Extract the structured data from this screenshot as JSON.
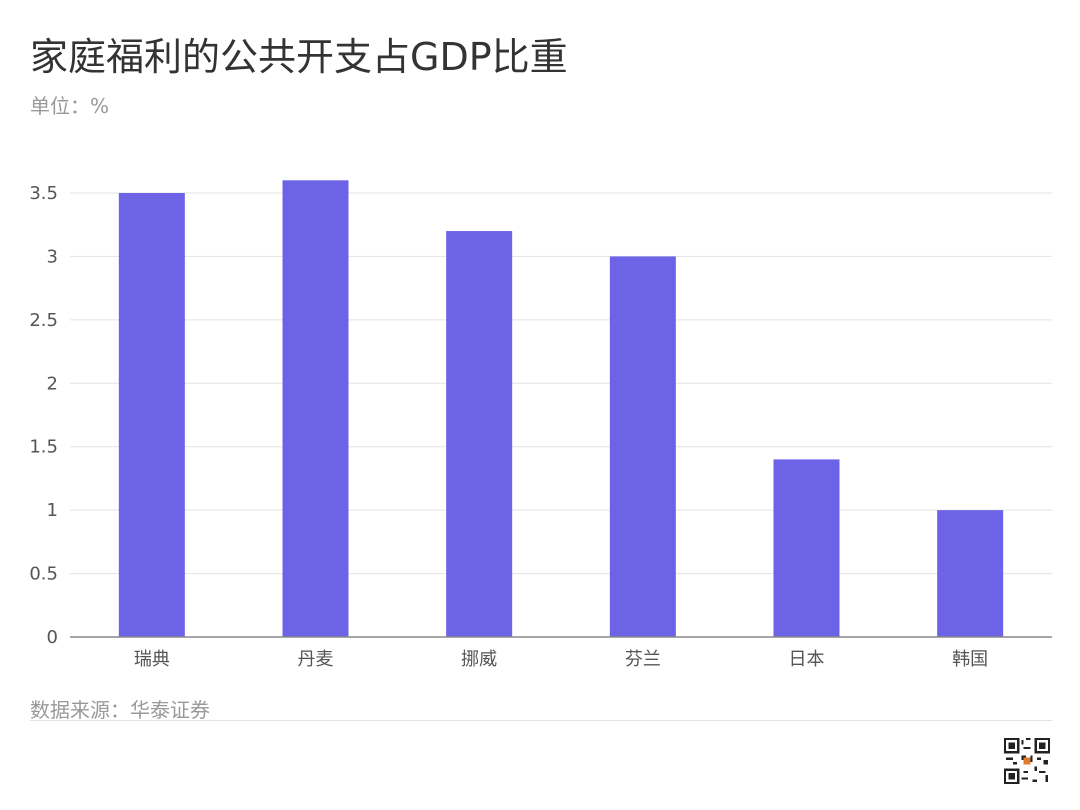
{
  "header": {
    "title": "家庭福利的公共开支占GDP比重",
    "unit": "单位：%"
  },
  "footer": {
    "source": "数据来源：华泰证券"
  },
  "colors": {
    "bar": "#6c63e6",
    "grid": "#e3e3e3",
    "axis": "#888888"
  },
  "chart_data": {
    "type": "bar",
    "title": "家庭福利的公共开支占GDP比重",
    "ylabel": "单位：%",
    "xlabel": "",
    "categories": [
      "瑞典",
      "丹麦",
      "挪威",
      "芬兰",
      "日本",
      "韩国"
    ],
    "values": [
      3.5,
      3.6,
      3.2,
      3.0,
      1.4,
      1.0
    ],
    "ylim": [
      0,
      3.5
    ],
    "yticks": [
      "0",
      "0.5",
      "1",
      "1.5",
      "2",
      "2.5",
      "3",
      "3.5"
    ],
    "grid": true,
    "legend": "none"
  }
}
